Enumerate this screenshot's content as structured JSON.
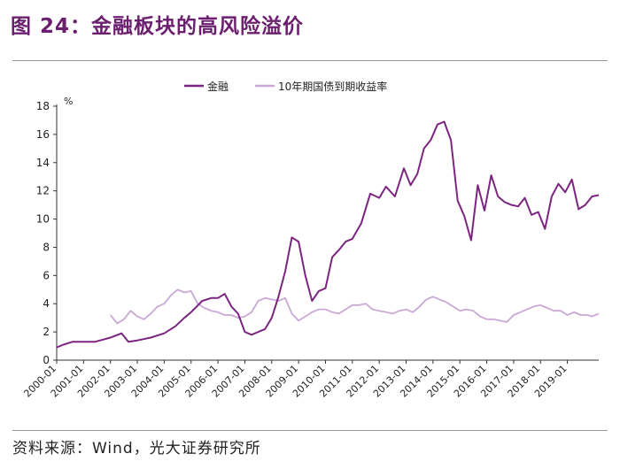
{
  "figure": {
    "title": "图 24：金融板块的高风险溢价",
    "source": "资料来源：Wind，光大证券研究所"
  },
  "colors": {
    "title": "#6b1f6e",
    "finance": "#7b2581",
    "bond": "#c9a8d6",
    "axis": "#333333"
  },
  "chart_data": {
    "type": "line",
    "unit_label": "%",
    "ylim": [
      0,
      18
    ],
    "y_ticks": [
      "0",
      "2",
      "4",
      "6",
      "8",
      "10",
      "12",
      "14",
      "16",
      "18"
    ],
    "x_ticks": [
      "2000-01",
      "2001-01",
      "2002-01",
      "2003-01",
      "2004-01",
      "2005-01",
      "2006-01",
      "2007-01",
      "2008-01",
      "2009-01",
      "2010-01",
      "2011-01",
      "2012-01",
      "2013-01",
      "2014-01",
      "2015-01",
      "2016-01",
      "2017-01",
      "2018-01",
      "2019-01"
    ],
    "x_range": [
      "2000-01",
      "2020-03"
    ],
    "grid": false,
    "legend_position": "top-center",
    "series": [
      {
        "name": "金融",
        "color": "#7b2581",
        "points": [
          [
            "2000-01",
            0.9
          ],
          [
            "2000-04",
            1.1
          ],
          [
            "2000-08",
            1.3
          ],
          [
            "2001-01",
            1.3
          ],
          [
            "2001-06",
            1.3
          ],
          [
            "2002-01",
            1.6
          ],
          [
            "2002-06",
            1.9
          ],
          [
            "2002-09",
            1.3
          ],
          [
            "2003-01",
            1.4
          ],
          [
            "2003-07",
            1.6
          ],
          [
            "2004-01",
            1.9
          ],
          [
            "2004-06",
            2.4
          ],
          [
            "2004-10",
            3.0
          ],
          [
            "2005-01",
            3.4
          ],
          [
            "2005-06",
            4.2
          ],
          [
            "2005-10",
            4.4
          ],
          [
            "2006-01",
            4.4
          ],
          [
            "2006-04",
            4.7
          ],
          [
            "2006-07",
            3.8
          ],
          [
            "2006-10",
            3.3
          ],
          [
            "2007-01",
            2.0
          ],
          [
            "2007-04",
            1.8
          ],
          [
            "2007-07",
            2.0
          ],
          [
            "2007-10",
            2.2
          ],
          [
            "2008-01",
            3.0
          ],
          [
            "2008-04",
            4.5
          ],
          [
            "2008-07",
            6.3
          ],
          [
            "2008-10",
            8.7
          ],
          [
            "2009-01",
            8.4
          ],
          [
            "2009-04",
            6.0
          ],
          [
            "2009-07",
            4.2
          ],
          [
            "2009-10",
            4.9
          ],
          [
            "2010-01",
            5.1
          ],
          [
            "2010-04",
            7.3
          ],
          [
            "2010-07",
            7.8
          ],
          [
            "2010-10",
            8.4
          ],
          [
            "2011-01",
            8.6
          ],
          [
            "2011-05",
            9.7
          ],
          [
            "2011-09",
            11.8
          ],
          [
            "2012-01",
            11.5
          ],
          [
            "2012-04",
            12.3
          ],
          [
            "2012-08",
            11.6
          ],
          [
            "2012-12",
            13.6
          ],
          [
            "2013-03",
            12.4
          ],
          [
            "2013-06",
            13.2
          ],
          [
            "2013-09",
            15.0
          ],
          [
            "2013-12",
            15.6
          ],
          [
            "2014-03",
            16.7
          ],
          [
            "2014-06",
            16.9
          ],
          [
            "2014-09",
            15.6
          ],
          [
            "2014-12",
            11.3
          ],
          [
            "2015-03",
            10.2
          ],
          [
            "2015-06",
            8.5
          ],
          [
            "2015-09",
            12.4
          ],
          [
            "2015-12",
            10.6
          ],
          [
            "2016-03",
            13.1
          ],
          [
            "2016-06",
            11.6
          ],
          [
            "2016-09",
            11.2
          ],
          [
            "2016-12",
            11.0
          ],
          [
            "2017-03",
            10.9
          ],
          [
            "2017-06",
            11.5
          ],
          [
            "2017-09",
            10.3
          ],
          [
            "2017-12",
            10.5
          ],
          [
            "2018-03",
            9.3
          ],
          [
            "2018-06",
            11.6
          ],
          [
            "2018-09",
            12.5
          ],
          [
            "2018-12",
            11.9
          ],
          [
            "2019-03",
            12.8
          ],
          [
            "2019-06",
            10.7
          ],
          [
            "2019-09",
            11.0
          ],
          [
            "2019-12",
            11.6
          ],
          [
            "2020-03",
            11.7
          ]
        ]
      },
      {
        "name": "10年期国债到期收益率",
        "color": "#c9a8d6",
        "points": [
          [
            "2002-01",
            3.2
          ],
          [
            "2002-04",
            2.6
          ],
          [
            "2002-07",
            2.9
          ],
          [
            "2002-10",
            3.5
          ],
          [
            "2003-01",
            3.1
          ],
          [
            "2003-04",
            2.9
          ],
          [
            "2003-07",
            3.3
          ],
          [
            "2003-10",
            3.8
          ],
          [
            "2004-01",
            4.0
          ],
          [
            "2004-04",
            4.6
          ],
          [
            "2004-07",
            5.0
          ],
          [
            "2004-10",
            4.8
          ],
          [
            "2005-01",
            4.9
          ],
          [
            "2005-04",
            4.0
          ],
          [
            "2005-07",
            3.7
          ],
          [
            "2005-10",
            3.5
          ],
          [
            "2006-01",
            3.4
          ],
          [
            "2006-04",
            3.2
          ],
          [
            "2006-07",
            3.2
          ],
          [
            "2006-10",
            3.0
          ],
          [
            "2007-01",
            3.1
          ],
          [
            "2007-04",
            3.4
          ],
          [
            "2007-07",
            4.2
          ],
          [
            "2007-10",
            4.4
          ],
          [
            "2008-01",
            4.3
          ],
          [
            "2008-04",
            4.2
          ],
          [
            "2008-07",
            4.4
          ],
          [
            "2008-10",
            3.3
          ],
          [
            "2009-01",
            2.8
          ],
          [
            "2009-04",
            3.1
          ],
          [
            "2009-07",
            3.4
          ],
          [
            "2009-10",
            3.6
          ],
          [
            "2010-01",
            3.6
          ],
          [
            "2010-04",
            3.4
          ],
          [
            "2010-07",
            3.3
          ],
          [
            "2010-10",
            3.6
          ],
          [
            "2011-01",
            3.9
          ],
          [
            "2011-04",
            3.9
          ],
          [
            "2011-07",
            4.0
          ],
          [
            "2011-10",
            3.6
          ],
          [
            "2012-01",
            3.5
          ],
          [
            "2012-04",
            3.4
          ],
          [
            "2012-07",
            3.3
          ],
          [
            "2012-10",
            3.5
          ],
          [
            "2013-01",
            3.6
          ],
          [
            "2013-04",
            3.4
          ],
          [
            "2013-07",
            3.8
          ],
          [
            "2013-10",
            4.3
          ],
          [
            "2014-01",
            4.5
          ],
          [
            "2014-04",
            4.3
          ],
          [
            "2014-07",
            4.1
          ],
          [
            "2014-10",
            3.8
          ],
          [
            "2015-01",
            3.5
          ],
          [
            "2015-04",
            3.6
          ],
          [
            "2015-07",
            3.5
          ],
          [
            "2015-10",
            3.1
          ],
          [
            "2016-01",
            2.9
          ],
          [
            "2016-04",
            2.9
          ],
          [
            "2016-07",
            2.8
          ],
          [
            "2016-10",
            2.7
          ],
          [
            "2017-01",
            3.2
          ],
          [
            "2017-04",
            3.4
          ],
          [
            "2017-07",
            3.6
          ],
          [
            "2017-10",
            3.8
          ],
          [
            "2018-01",
            3.9
          ],
          [
            "2018-04",
            3.7
          ],
          [
            "2018-07",
            3.5
          ],
          [
            "2018-10",
            3.5
          ],
          [
            "2019-01",
            3.2
          ],
          [
            "2019-04",
            3.4
          ],
          [
            "2019-07",
            3.2
          ],
          [
            "2019-10",
            3.2
          ],
          [
            "2019-12",
            3.1
          ],
          [
            "2020-03",
            3.3
          ]
        ]
      }
    ]
  }
}
